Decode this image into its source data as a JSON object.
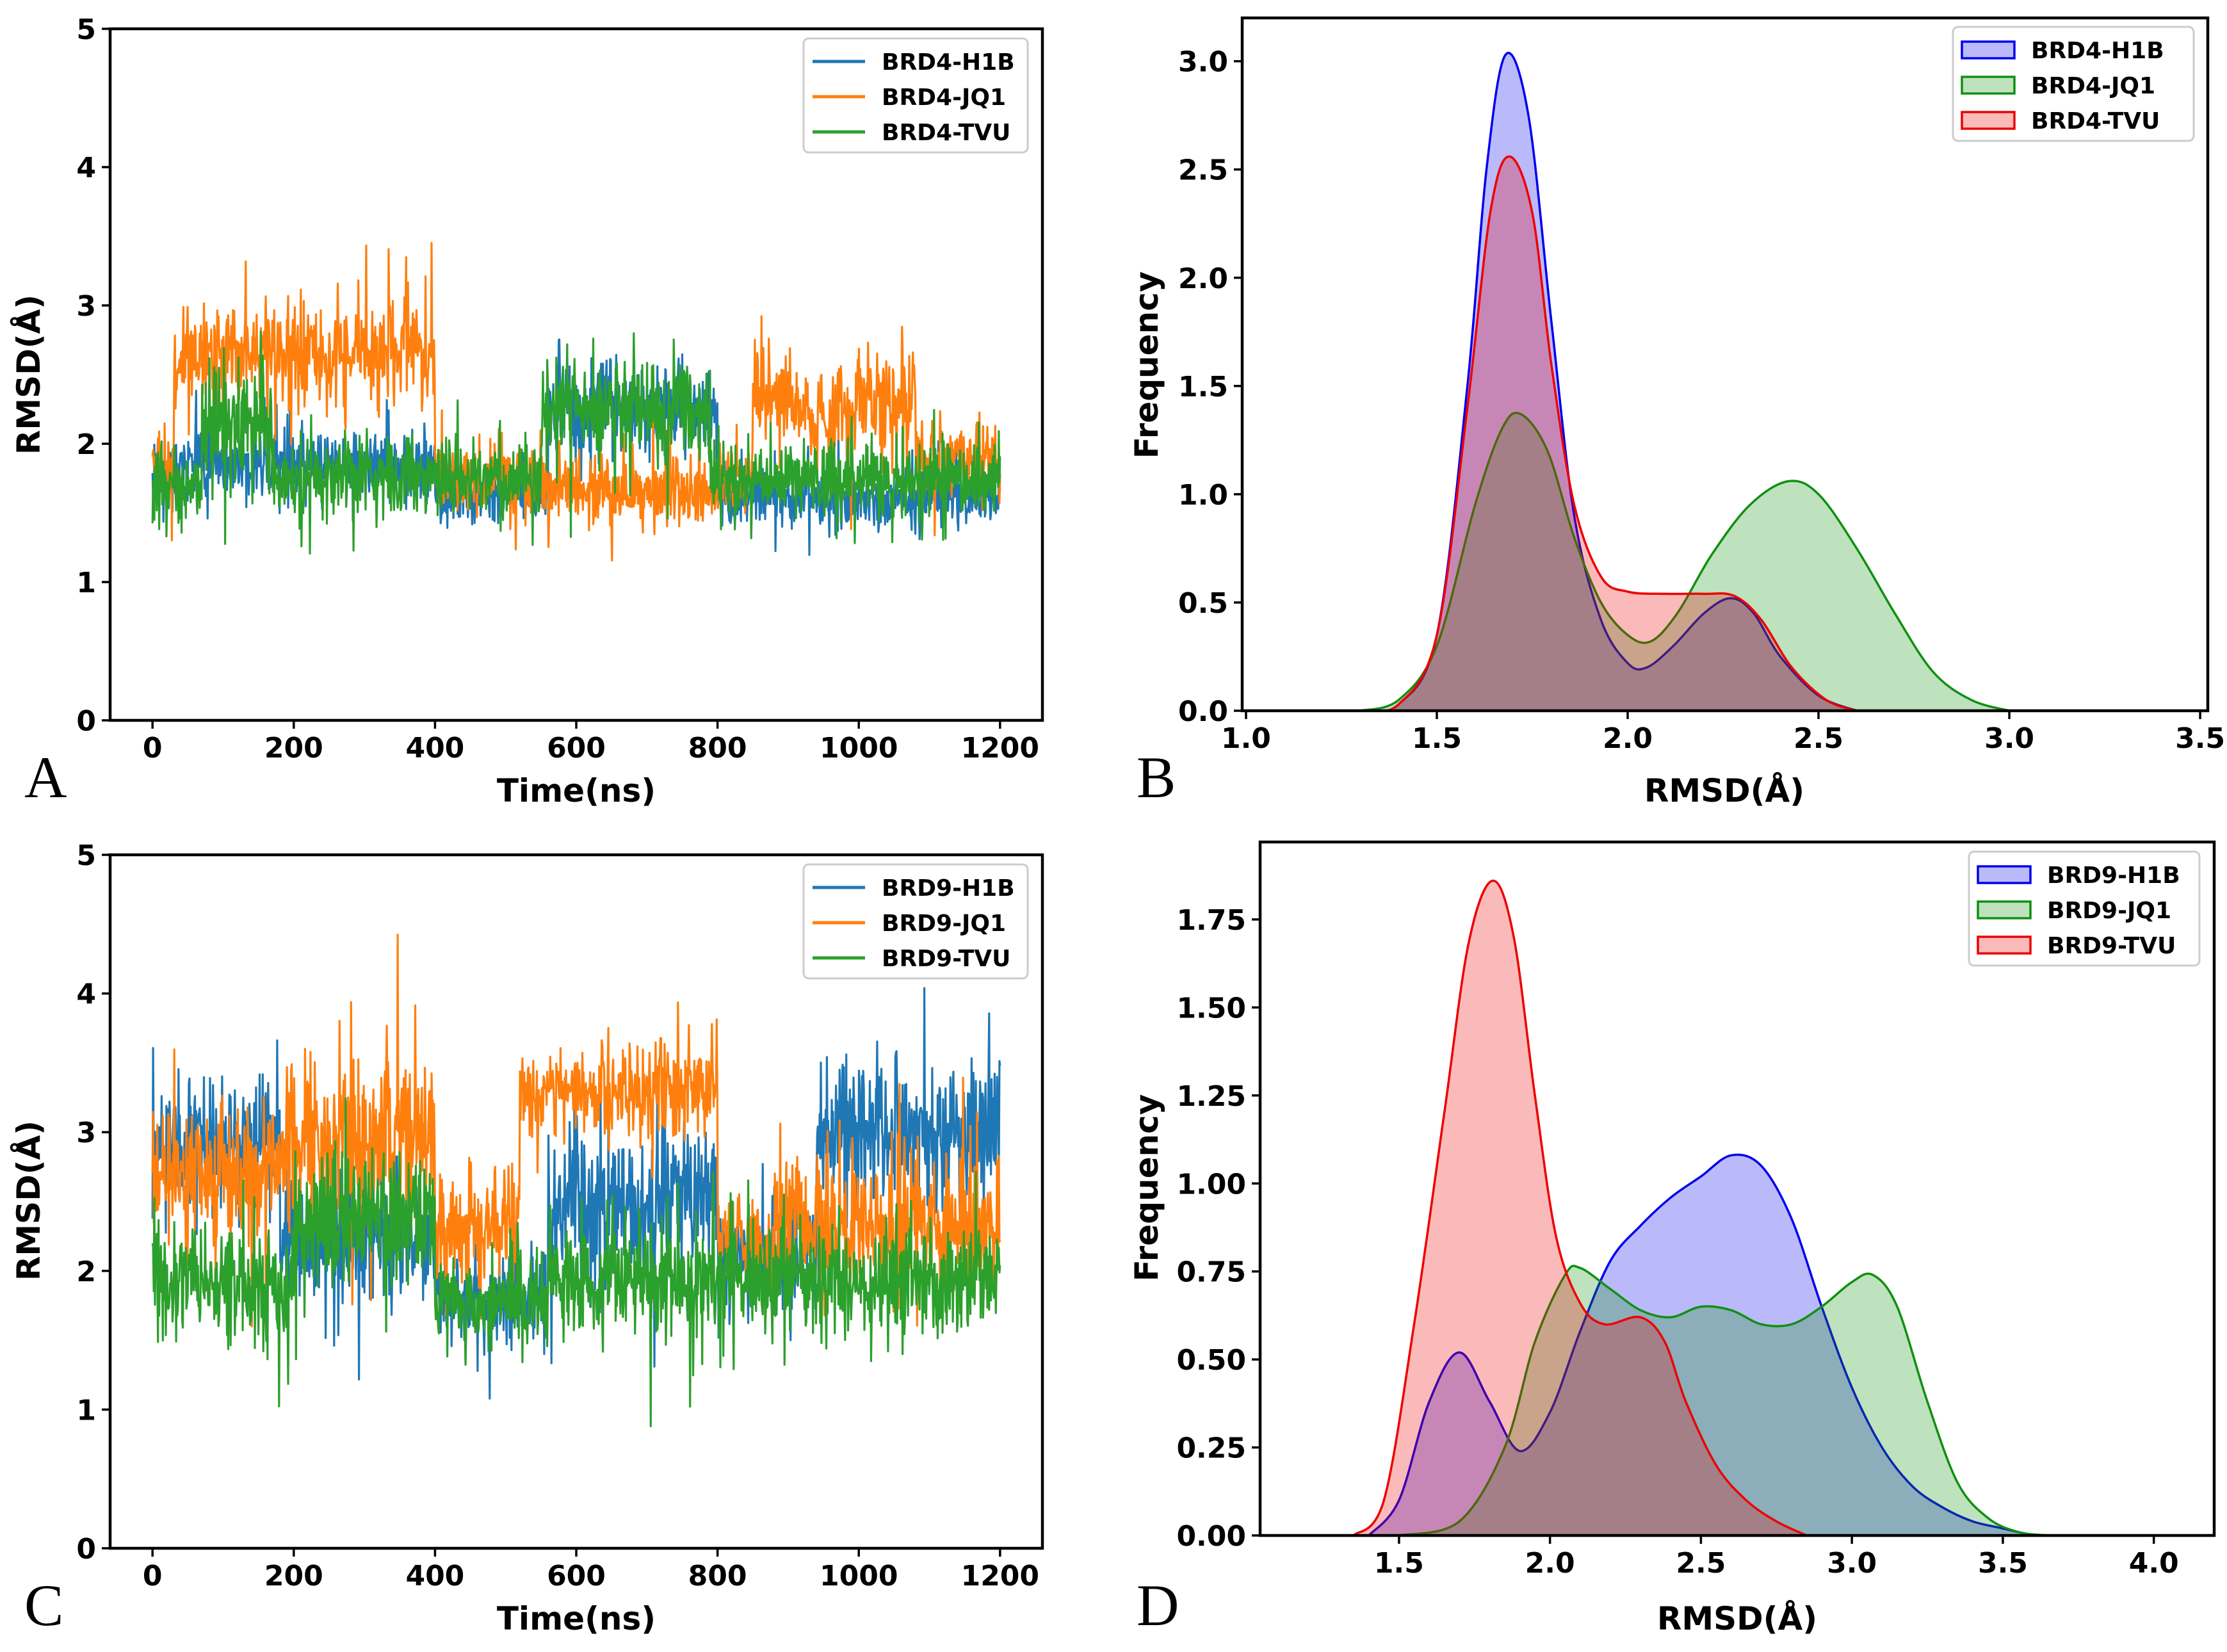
{
  "chart_data": [
    {
      "panel": "A",
      "type": "line",
      "xlabel": "Time(ns)",
      "ylabel": "RMSD(Å)",
      "xlim": [
        -60,
        1260
      ],
      "ylim": [
        0,
        5
      ],
      "xticks": [
        0,
        200,
        400,
        600,
        800,
        1000,
        1200
      ],
      "yticks": [
        0,
        1,
        2,
        3,
        4,
        5
      ],
      "legend": "top-right",
      "series": [
        {
          "name": "BRD4-H1B",
          "color": "#1f77b4",
          "segments": [
            [
              0,
              30,
              1.75,
              0.13
            ],
            [
              30,
              400,
              1.85,
              0.14
            ],
            [
              400,
              560,
              1.65,
              0.12
            ],
            [
              560,
              800,
              2.25,
              0.2
            ],
            [
              800,
              1200,
              1.6,
              0.12
            ]
          ]
        },
        {
          "name": "BRD4-JQ1",
          "color": "#ff7f0e",
          "segments": [
            [
              0,
              30,
              1.85,
              0.15
            ],
            [
              30,
              400,
              2.65,
              0.22
            ],
            [
              400,
              560,
              1.75,
              0.15
            ],
            [
              560,
              790,
              1.65,
              0.14
            ],
            [
              790,
              850,
              1.75,
              0.15
            ],
            [
              850,
              920,
              2.35,
              0.2
            ],
            [
              920,
              1000,
              2.2,
              0.18
            ],
            [
              1000,
              1080,
              2.35,
              0.22
            ],
            [
              1080,
              1200,
              1.9,
              0.15
            ]
          ]
        },
        {
          "name": "BRD4-TVU",
          "color": "#2ca02c",
          "segments": [
            [
              0,
              70,
              1.7,
              0.14
            ],
            [
              70,
              170,
              2.15,
              0.25
            ],
            [
              170,
              400,
              1.75,
              0.15
            ],
            [
              400,
              550,
              1.75,
              0.15
            ],
            [
              550,
              790,
              2.25,
              0.22
            ],
            [
              790,
              1200,
              1.75,
              0.15
            ]
          ]
        }
      ]
    },
    {
      "panel": "B",
      "type": "area",
      "xlabel": "RMSD(Å)",
      "ylabel": "Frequency",
      "xlim": [
        0.99,
        3.52
      ],
      "ylim": [
        0,
        3.2
      ],
      "xticks": [
        1.0,
        1.5,
        2.0,
        2.5,
        3.0,
        3.5
      ],
      "yticks": [
        0.0,
        0.5,
        1.0,
        1.5,
        2.0,
        2.5,
        3.0
      ],
      "legend": "top-right",
      "series": [
        {
          "name": "BRD4-H1B",
          "color": "#0000ee",
          "points": [
            [
              1.3,
              0
            ],
            [
              1.4,
              0.03
            ],
            [
              1.5,
              0.35
            ],
            [
              1.58,
              1.5
            ],
            [
              1.63,
              2.5
            ],
            [
              1.68,
              3.03
            ],
            [
              1.74,
              2.75
            ],
            [
              1.8,
              1.8
            ],
            [
              1.86,
              0.9
            ],
            [
              1.93,
              0.42
            ],
            [
              2.0,
              0.22
            ],
            [
              2.05,
              0.2
            ],
            [
              2.12,
              0.3
            ],
            [
              2.2,
              0.45
            ],
            [
              2.27,
              0.52
            ],
            [
              2.33,
              0.45
            ],
            [
              2.4,
              0.25
            ],
            [
              2.5,
              0.07
            ],
            [
              2.6,
              0
            ]
          ]
        },
        {
          "name": "BRD4-JQ1",
          "color": "#109010",
          "points": [
            [
              1.3,
              0
            ],
            [
              1.4,
              0.05
            ],
            [
              1.5,
              0.3
            ],
            [
              1.6,
              0.95
            ],
            [
              1.67,
              1.3
            ],
            [
              1.72,
              1.37
            ],
            [
              1.79,
              1.2
            ],
            [
              1.86,
              0.8
            ],
            [
              1.93,
              0.5
            ],
            [
              2.0,
              0.35
            ],
            [
              2.06,
              0.32
            ],
            [
              2.13,
              0.45
            ],
            [
              2.22,
              0.72
            ],
            [
              2.32,
              0.95
            ],
            [
              2.42,
              1.06
            ],
            [
              2.5,
              1.0
            ],
            [
              2.6,
              0.75
            ],
            [
              2.7,
              0.45
            ],
            [
              2.8,
              0.18
            ],
            [
              2.9,
              0.05
            ],
            [
              3.0,
              0
            ]
          ]
        },
        {
          "name": "BRD4-TVU",
          "color": "#ee0000",
          "points": [
            [
              1.3,
              0
            ],
            [
              1.4,
              0.03
            ],
            [
              1.5,
              0.35
            ],
            [
              1.58,
              1.4
            ],
            [
              1.64,
              2.3
            ],
            [
              1.69,
              2.56
            ],
            [
              1.75,
              2.3
            ],
            [
              1.8,
              1.6
            ],
            [
              1.86,
              0.95
            ],
            [
              1.93,
              0.62
            ],
            [
              2.0,
              0.55
            ],
            [
              2.1,
              0.54
            ],
            [
              2.2,
              0.54
            ],
            [
              2.28,
              0.53
            ],
            [
              2.35,
              0.42
            ],
            [
              2.43,
              0.2
            ],
            [
              2.52,
              0.05
            ],
            [
              2.6,
              0
            ]
          ]
        }
      ]
    },
    {
      "panel": "C",
      "type": "line",
      "xlabel": "Time(ns)",
      "ylabel": "RMSD(Å)",
      "xlim": [
        -60,
        1260
      ],
      "ylim": [
        0,
        5
      ],
      "xticks": [
        0,
        200,
        400,
        600,
        800,
        1000,
        1200
      ],
      "yticks": [
        0,
        1,
        2,
        3,
        4,
        5
      ],
      "legend": "top-right",
      "series": [
        {
          "name": "BRD9-H1B",
          "color": "#1f77b4",
          "segments": [
            [
              0,
              180,
              2.9,
              0.25
            ],
            [
              180,
              400,
              2.2,
              0.25
            ],
            [
              400,
              560,
              1.8,
              0.2
            ],
            [
              560,
              700,
              2.45,
              0.3
            ],
            [
              700,
              800,
              2.5,
              0.3
            ],
            [
              800,
              940,
              2.1,
              0.25
            ],
            [
              940,
              1200,
              3.0,
              0.28
            ]
          ]
        },
        {
          "name": "BRD9-JQ1",
          "color": "#ff7f0e",
          "segments": [
            [
              0,
              180,
              2.7,
              0.25
            ],
            [
              180,
              400,
              2.95,
              0.32
            ],
            [
              400,
              520,
              2.3,
              0.25
            ],
            [
              520,
              800,
              3.3,
              0.2
            ],
            [
              800,
              880,
              2.2,
              0.2
            ],
            [
              880,
              1200,
              2.35,
              0.3
            ]
          ]
        },
        {
          "name": "BRD9-TVU",
          "color": "#2ca02c",
          "segments": [
            [
              0,
              200,
              1.9,
              0.22
            ],
            [
              200,
              400,
              2.4,
              0.28
            ],
            [
              400,
              560,
              1.75,
              0.2
            ],
            [
              560,
              800,
              1.95,
              0.25
            ],
            [
              800,
              1200,
              1.95,
              0.22
            ]
          ]
        }
      ]
    },
    {
      "panel": "D",
      "type": "area",
      "xlabel": "RMSD(Å)",
      "ylabel": "Frequency",
      "xlim": [
        1.04,
        4.2
      ],
      "ylim": [
        0,
        1.97
      ],
      "xticks": [
        1.5,
        2.0,
        2.5,
        3.0,
        3.5,
        4.0
      ],
      "yticks": [
        0.0,
        0.25,
        0.5,
        0.75,
        1.0,
        1.25,
        1.5,
        1.75
      ],
      "legend": "top-right",
      "series": [
        {
          "name": "BRD9-H1B",
          "color": "#0000ee",
          "points": [
            [
              1.4,
              0
            ],
            [
              1.5,
              0.1
            ],
            [
              1.6,
              0.38
            ],
            [
              1.7,
              0.52
            ],
            [
              1.8,
              0.38
            ],
            [
              1.9,
              0.24
            ],
            [
              2.0,
              0.35
            ],
            [
              2.1,
              0.58
            ],
            [
              2.2,
              0.78
            ],
            [
              2.3,
              0.88
            ],
            [
              2.4,
              0.96
            ],
            [
              2.5,
              1.02
            ],
            [
              2.6,
              1.08
            ],
            [
              2.7,
              1.05
            ],
            [
              2.8,
              0.9
            ],
            [
              2.9,
              0.65
            ],
            [
              3.0,
              0.42
            ],
            [
              3.1,
              0.25
            ],
            [
              3.2,
              0.14
            ],
            [
              3.3,
              0.08
            ],
            [
              3.4,
              0.04
            ],
            [
              3.5,
              0.02
            ],
            [
              3.6,
              0
            ]
          ]
        },
        {
          "name": "BRD9-JQ1",
          "color": "#109010",
          "points": [
            [
              1.5,
              0
            ],
            [
              1.7,
              0.04
            ],
            [
              1.85,
              0.25
            ],
            [
              1.95,
              0.55
            ],
            [
              2.05,
              0.74
            ],
            [
              2.1,
              0.76
            ],
            [
              2.2,
              0.7
            ],
            [
              2.3,
              0.64
            ],
            [
              2.4,
              0.62
            ],
            [
              2.5,
              0.65
            ],
            [
              2.6,
              0.64
            ],
            [
              2.7,
              0.6
            ],
            [
              2.8,
              0.6
            ],
            [
              2.9,
              0.65
            ],
            [
              3.0,
              0.72
            ],
            [
              3.07,
              0.74
            ],
            [
              3.15,
              0.65
            ],
            [
              3.25,
              0.38
            ],
            [
              3.35,
              0.15
            ],
            [
              3.45,
              0.05
            ],
            [
              3.55,
              0.01
            ],
            [
              3.65,
              0
            ]
          ]
        },
        {
          "name": "BRD9-TVU",
          "color": "#ee0000",
          "points": [
            [
              1.35,
              0
            ],
            [
              1.45,
              0.1
            ],
            [
              1.55,
              0.6
            ],
            [
              1.65,
              1.2
            ],
            [
              1.73,
              1.68
            ],
            [
              1.81,
              1.86
            ],
            [
              1.88,
              1.7
            ],
            [
              1.95,
              1.25
            ],
            [
              2.02,
              0.85
            ],
            [
              2.1,
              0.66
            ],
            [
              2.18,
              0.6
            ],
            [
              2.3,
              0.62
            ],
            [
              2.38,
              0.55
            ],
            [
              2.45,
              0.38
            ],
            [
              2.55,
              0.2
            ],
            [
              2.65,
              0.1
            ],
            [
              2.75,
              0.04
            ],
            [
              2.85,
              0
            ]
          ]
        }
      ]
    }
  ],
  "panels": [
    {
      "letter": "A",
      "legend": [
        "BRD4-H1B",
        "BRD4-JQ1",
        "BRD4-TVU"
      ]
    },
    {
      "letter": "B",
      "legend": [
        "BRD4-H1B",
        "BRD4-JQ1",
        "BRD4-TVU"
      ]
    },
    {
      "letter": "C",
      "legend": [
        "BRD9-H1B",
        "BRD9-JQ1",
        "BRD9-TVU"
      ]
    },
    {
      "letter": "D",
      "legend": [
        "BRD9-H1B",
        "BRD9-JQ1",
        "BRD9-TVU"
      ]
    }
  ]
}
